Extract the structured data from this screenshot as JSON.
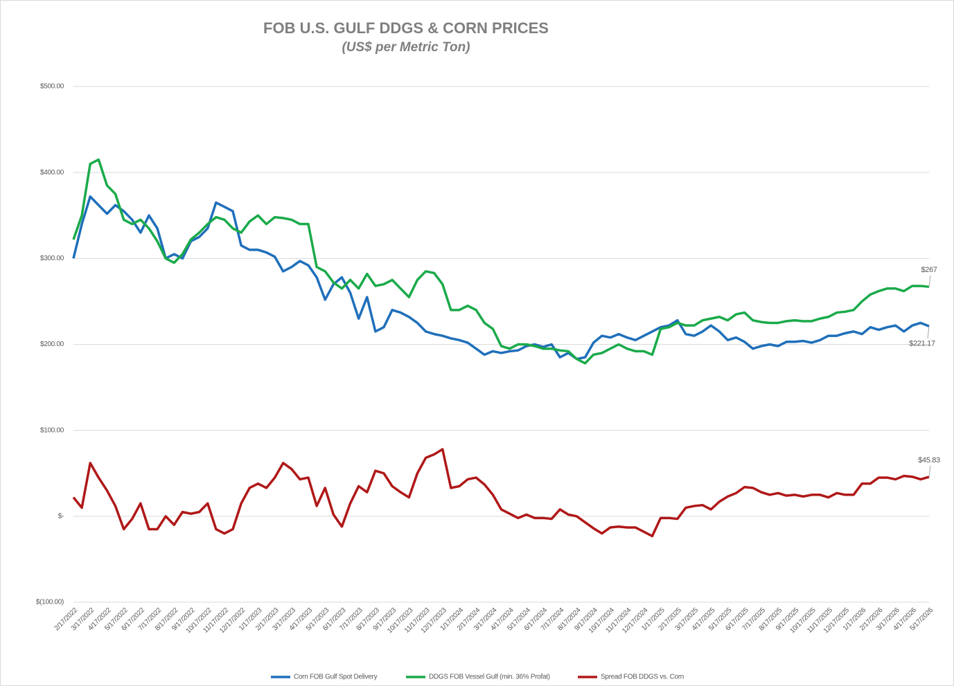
{
  "chart_data": {
    "type": "line",
    "title": "FOB U.S. GULF DDGS & CORN PRICES",
    "subtitle": "(US$ per Metric Ton)",
    "categories": [
      "2/17/2022",
      null,
      "3/17/2022",
      null,
      "4/17/2022",
      null,
      "5/17/2022",
      null,
      "6/17/2022",
      null,
      "7/17/2022",
      null,
      "8/17/2022",
      null,
      "9/17/2022",
      null,
      "10/17/2022",
      null,
      "11/17/2022",
      null,
      "12/17/2022",
      null,
      "1/17/2023",
      null,
      "2/17/2023",
      null,
      "3/17/2023",
      null,
      "4/17/2023",
      null,
      "5/17/2023",
      null,
      "6/17/2023",
      null,
      "7/17/2023",
      null,
      "8/17/2023",
      null,
      "9/17/2023",
      null,
      "10/17/2023",
      null,
      "11/17/2023",
      null,
      "12/17/2023",
      null,
      "1/17/2024",
      null,
      "2/17/2024",
      null,
      "3/17/2024",
      null,
      "4/17/2024",
      null,
      "5/17/2024",
      null,
      "6/17/2024",
      null,
      "7/17/2024",
      null,
      "8/17/2024",
      null,
      "9/17/2024",
      null,
      "10/17/2024",
      null,
      "11/17/2024",
      null,
      "12/17/2024",
      null,
      "1/17/2025",
      null,
      "2/17/2025",
      null,
      "3/17/2025",
      null,
      "4/17/2025",
      null,
      "5/17/2025",
      null,
      "6/17/2025",
      null,
      "7/17/2025",
      null,
      "8/17/2025",
      null,
      "9/17/2025",
      null,
      "10/17/2025",
      null,
      "11/17/2025",
      null,
      "12/17/2025",
      null,
      "1/17/2026",
      null,
      "2/17/2026",
      null,
      "3/17/2026",
      null,
      "4/17/2026",
      null,
      "5/17/2026"
    ],
    "series": [
      {
        "name": "Corn FOB Gulf Spot  Delivery",
        "color": "#1f6fba",
        "values": [
          300,
          340,
          372,
          362,
          352,
          362,
          355,
          345,
          330,
          350,
          335,
          300,
          305,
          300,
          320,
          325,
          335,
          365,
          360,
          355,
          315,
          310,
          310,
          307,
          302,
          285,
          290,
          297,
          292,
          278,
          252,
          270,
          278,
          260,
          230,
          255,
          215,
          220,
          240,
          237,
          232,
          225,
          215,
          212,
          210,
          207,
          205,
          202,
          195,
          188,
          192,
          190,
          192,
          193,
          198,
          200,
          197,
          200,
          185,
          190,
          183,
          185,
          202,
          210,
          208,
          212,
          208,
          205,
          210,
          215,
          220,
          222,
          228,
          212,
          210,
          215,
          222,
          215,
          205,
          208,
          203,
          195,
          198,
          200,
          198,
          203,
          203,
          204,
          202,
          205,
          210,
          210,
          213,
          215,
          212,
          220,
          217,
          220,
          222,
          215,
          222,
          225,
          221.17
        ],
        "value_labels": [
          null,
          null,
          null,
          null,
          null,
          null,
          null,
          null,
          null,
          null,
          null,
          null,
          null,
          null,
          null,
          null,
          null,
          null,
          null,
          null,
          null,
          null,
          null,
          null,
          null,
          null,
          null,
          null,
          null,
          null,
          null,
          null,
          null,
          null,
          null,
          null,
          null,
          null,
          null,
          null,
          null,
          null,
          null,
          null,
          null,
          null,
          null,
          null,
          null,
          null,
          null,
          null,
          null,
          null,
          null,
          null,
          null,
          null,
          null,
          null,
          null,
          null,
          null,
          null,
          null,
          null,
          null,
          null,
          null,
          null,
          null,
          null,
          null,
          null,
          null,
          null,
          null,
          null,
          null,
          null,
          null,
          null,
          null,
          null,
          null,
          null,
          null,
          null,
          null,
          null,
          null,
          null,
          null,
          null,
          null,
          null,
          null,
          null,
          null,
          null,
          null,
          null,
          "$221.17"
        ]
      },
      {
        "name": "DDGS FOB Vessel Gulf (min. 36% Profat)",
        "color": "#1aaa4a",
        "values": [
          322,
          350,
          410,
          415,
          385,
          375,
          345,
          340,
          345,
          335,
          320,
          300,
          295,
          305,
          322,
          330,
          340,
          348,
          345,
          335,
          330,
          343,
          350,
          340,
          348,
          347,
          345,
          340,
          340,
          290,
          285,
          272,
          265,
          275,
          265,
          282,
          268,
          270,
          275,
          265,
          255,
          275,
          285,
          283,
          270,
          240,
          240,
          245,
          240,
          225,
          218,
          198,
          195,
          200,
          200,
          198,
          195,
          195,
          193,
          192,
          183,
          178,
          188,
          190,
          195,
          200,
          195,
          192,
          192,
          188,
          218,
          220,
          225,
          222,
          222,
          228,
          230,
          232,
          228,
          235,
          237,
          228,
          226,
          225,
          225,
          227,
          228,
          227,
          227,
          230,
          232,
          237,
          238,
          240,
          250,
          258,
          262,
          265,
          265,
          262,
          268,
          268,
          267
        ],
        "value_labels": [
          null,
          null,
          null,
          null,
          null,
          null,
          null,
          null,
          null,
          null,
          null,
          null,
          null,
          null,
          null,
          null,
          null,
          null,
          null,
          null,
          null,
          null,
          null,
          null,
          null,
          null,
          null,
          null,
          null,
          null,
          null,
          null,
          null,
          null,
          null,
          null,
          null,
          null,
          null,
          null,
          null,
          null,
          null,
          null,
          null,
          null,
          null,
          null,
          null,
          null,
          null,
          null,
          null,
          null,
          null,
          null,
          null,
          null,
          null,
          null,
          null,
          null,
          null,
          null,
          null,
          null,
          null,
          null,
          null,
          null,
          null,
          null,
          null,
          null,
          null,
          null,
          null,
          null,
          null,
          null,
          null,
          null,
          null,
          null,
          null,
          null,
          null,
          null,
          null,
          null,
          null,
          null,
          null,
          null,
          null,
          null,
          null,
          null,
          null,
          null,
          null,
          null,
          "$267"
        ]
      },
      {
        "name": "Spread FOB DDGS vs. Corn",
        "color": "#b01818",
        "values": [
          22,
          10,
          62,
          45,
          30,
          12,
          -15,
          -3,
          15,
          -15,
          -15,
          0,
          -10,
          5,
          3,
          5,
          15,
          -15,
          -20,
          -15,
          15,
          33,
          38,
          33,
          45,
          62,
          55,
          43,
          45,
          12,
          33,
          2,
          -12,
          15,
          35,
          28,
          53,
          50,
          35,
          28,
          22,
          50,
          68,
          72,
          78,
          33,
          35,
          43,
          45,
          37,
          25,
          8,
          3,
          -2,
          2,
          -2,
          -2,
          -3,
          8,
          2,
          0,
          -7,
          -14,
          -20,
          -13,
          -12,
          -13,
          -13,
          -18,
          -23,
          -2,
          -2,
          -3,
          10,
          12,
          13,
          8,
          17,
          23,
          27,
          34,
          33,
          28,
          25,
          27,
          24,
          25,
          23,
          25,
          25,
          22,
          27,
          25,
          25,
          38,
          38,
          45,
          45,
          43,
          47,
          46,
          43,
          45.83
        ],
        "value_labels": [
          null,
          null,
          null,
          null,
          null,
          null,
          null,
          null,
          null,
          null,
          null,
          null,
          null,
          null,
          null,
          null,
          null,
          null,
          null,
          null,
          null,
          null,
          null,
          null,
          null,
          null,
          null,
          null,
          null,
          null,
          null,
          null,
          null,
          null,
          null,
          null,
          null,
          null,
          null,
          null,
          null,
          null,
          null,
          null,
          null,
          null,
          null,
          null,
          null,
          null,
          null,
          null,
          null,
          null,
          null,
          null,
          null,
          null,
          null,
          null,
          null,
          null,
          null,
          null,
          null,
          null,
          null,
          null,
          null,
          null,
          null,
          null,
          null,
          null,
          null,
          null,
          null,
          null,
          null,
          null,
          null,
          null,
          null,
          null,
          null,
          null,
          null,
          null,
          null,
          null,
          null,
          null,
          null,
          null,
          null,
          null,
          null,
          null,
          null,
          null,
          null,
          null,
          "$45.83"
        ]
      }
    ],
    "ylim": [
      -100,
      500
    ],
    "yticks": [
      {
        "value": -100,
        "label": "$(100.00)"
      },
      {
        "value": 0,
        "label": "$-"
      },
      {
        "value": 100,
        "label": "$100.00"
      },
      {
        "value": 200,
        "label": "$200.00"
      },
      {
        "value": 300,
        "label": "$300.00"
      },
      {
        "value": 400,
        "label": "$400.00"
      },
      {
        "value": 500,
        "label": "$500.00"
      }
    ],
    "grid": true,
    "legend": "bottom"
  }
}
